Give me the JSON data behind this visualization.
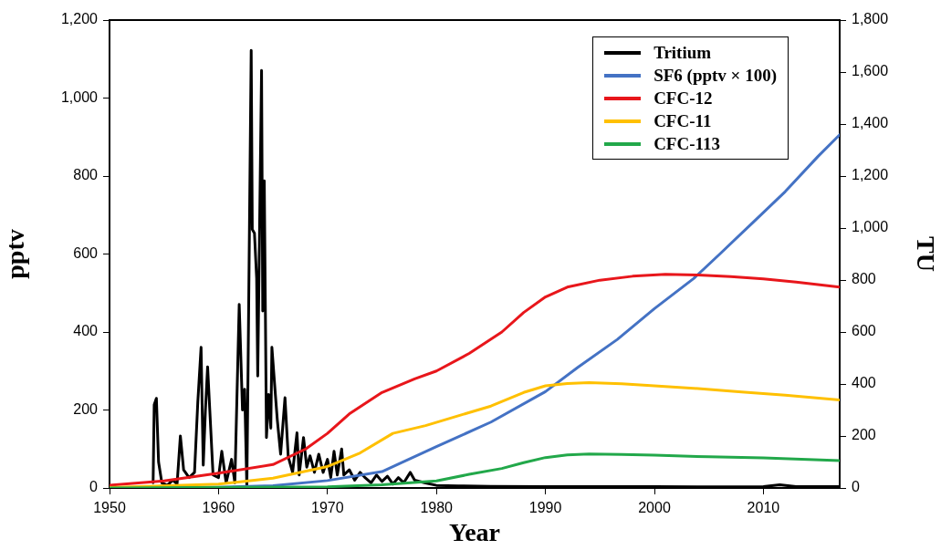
{
  "chart_data": {
    "type": "line",
    "xlabel": "Year",
    "ylabel": "pptv",
    "y2label": "TU",
    "xlim": [
      1950,
      2017
    ],
    "xticks": [
      1950,
      1960,
      1970,
      1980,
      1990,
      2000,
      2010
    ],
    "ylim": [
      0,
      1200
    ],
    "yticks": [
      0,
      200,
      400,
      600,
      800,
      {
        "value": 1000,
        "label": "1,000"
      },
      {
        "value": 1200,
        "label": "1,200"
      }
    ],
    "y2lim": [
      0,
      1800
    ],
    "y2ticks": [
      0,
      200,
      400,
      600,
      800,
      {
        "value": 1000,
        "label": "1,000"
      },
      {
        "value": 1200,
        "label": "1,200"
      },
      {
        "value": 1400,
        "label": "1,400"
      },
      {
        "value": 1600,
        "label": "1,600"
      },
      {
        "value": 1800,
        "label": "1,800"
      }
    ],
    "grid": false,
    "legend": "top right",
    "marker": "none",
    "line_style": "solid",
    "series": [
      {
        "name": "Tritium",
        "color": "#000000",
        "axis": "y2",
        "x": [
          1954.0,
          1954.1,
          1954.3,
          1954.5,
          1954.8,
          1955.3,
          1955.8,
          1956.2,
          1956.5,
          1956.8,
          1957.3,
          1957.8,
          1958.1,
          1958.4,
          1958.6,
          1958.8,
          1959.0,
          1959.2,
          1959.5,
          1960.0,
          1960.3,
          1960.7,
          1961.2,
          1961.5,
          1961.9,
          1962.2,
          1962.4,
          1962.6,
          1962.7,
          1963.0,
          1963.1,
          1963.3,
          1963.5,
          1963.6,
          1963.95,
          1964.06,
          1964.2,
          1964.4,
          1964.6,
          1964.8,
          1964.9,
          1965.2,
          1965.4,
          1965.7,
          1966.1,
          1966.4,
          1966.8,
          1967.2,
          1967.4,
          1967.8,
          1968.1,
          1968.4,
          1968.8,
          1969.2,
          1969.6,
          1970.0,
          1970.3,
          1970.6,
          1970.9,
          1971.3,
          1971.5,
          1972.0,
          1972.5,
          1973.0,
          1973.4,
          1974.0,
          1974.5,
          1975.0,
          1975.5,
          1976.0,
          1976.5,
          1977.0,
          1977.6,
          1978.0,
          1978.9,
          1980.0,
          1982.0,
          1985.0,
          1990.0,
          1995.0,
          2000.0,
          2005.0,
          2010.0,
          2011.5,
          2013.0,
          2017.0
        ],
        "values": [
          20,
          320,
          345,
          100,
          20,
          10,
          30,
          15,
          200,
          70,
          40,
          60,
          330,
          541,
          88,
          300,
          466,
          300,
          50,
          40,
          141,
          20,
          110,
          20,
          706,
          300,
          380,
          0,
          406,
          1683,
          995,
          980,
          806,
          431,
          1606,
          681,
          1182,
          194,
          360,
          230,
          541,
          370,
          260,
          130,
          347,
          120,
          60,
          212,
          50,
          194,
          80,
          124,
          60,
          130,
          60,
          110,
          40,
          141,
          50,
          150,
          50,
          70,
          30,
          60,
          42,
          20,
          50,
          25,
          45,
          15,
          40,
          20,
          60,
          30,
          20,
          10,
          8,
          6,
          5,
          5,
          5,
          4,
          5,
          12,
          5,
          5
        ]
      },
      {
        "name": "SF6 (pptv × 100)",
        "color": "#4472c4",
        "x": [
          1950,
          1960,
          1965,
          1970,
          1975,
          1980,
          1985,
          1990,
          1993,
          1996.6,
          2000,
          2003.6,
          2006,
          2009,
          2012,
          2015,
          2017
        ],
        "values": [
          0,
          2,
          6,
          19,
          42,
          106,
          169,
          247,
          310,
          381,
          460,
          537,
          600,
          680,
          760,
          850,
          906
        ]
      },
      {
        "name": "CFC-12",
        "color": "#e8161b",
        "x": [
          1950,
          1955,
          1960,
          1965,
          1968,
          1970,
          1972,
          1975,
          1978,
          1980,
          1983,
          1986,
          1988,
          1990,
          1992,
          1995,
          1998,
          2001,
          2004,
          2007,
          2010,
          2013,
          2017
        ],
        "values": [
          7,
          18,
          38,
          60,
          100,
          140,
          190,
          245,
          280,
          300,
          345,
          400,
          450,
          490,
          515,
          533,
          543,
          548,
          546,
          542,
          536,
          528,
          515
        ]
      },
      {
        "name": "CFC-11",
        "color": "#ffc000",
        "x": [
          1950,
          1960,
          1965,
          1970,
          1973,
          1976,
          1979,
          1982,
          1985,
          1988,
          1990,
          1992,
          1994,
          1997,
          2000,
          2004,
          2008,
          2012,
          2017
        ],
        "values": [
          1,
          10,
          25,
          55,
          90,
          140,
          160,
          185,
          210,
          245,
          262,
          268,
          270,
          267,
          262,
          255,
          246,
          238,
          226
        ]
      },
      {
        "name": "CFC-113",
        "color": "#22a84a",
        "x": [
          1950,
          1970,
          1975,
          1980,
          1983,
          1986,
          1988,
          1990,
          1992,
          1994,
          1997,
          2000,
          2005,
          2010,
          2017
        ],
        "values": [
          0,
          3,
          8,
          18,
          35,
          50,
          65,
          78,
          85,
          87,
          86,
          84,
          80,
          77,
          70
        ]
      }
    ]
  }
}
